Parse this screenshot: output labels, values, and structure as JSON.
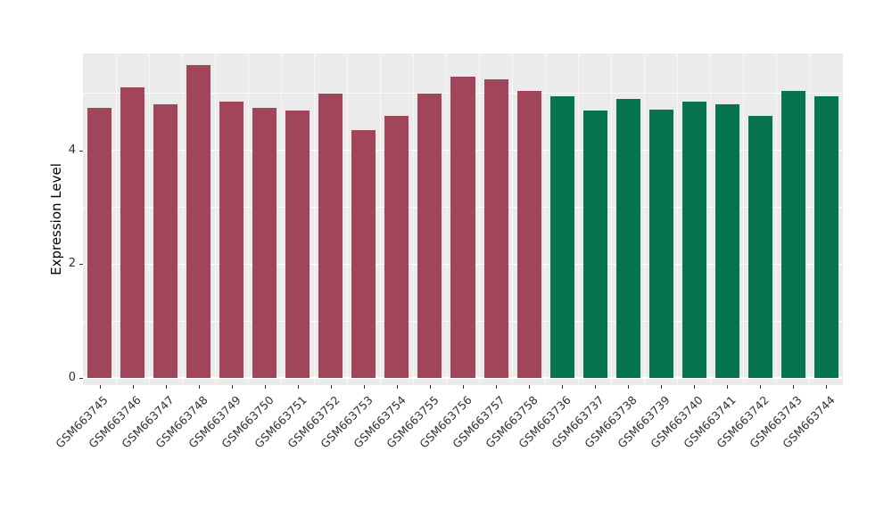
{
  "chart_data": {
    "type": "bar",
    "title": "",
    "xlabel": "",
    "ylabel": "Expression Level",
    "ylim": [
      0,
      5.7
    ],
    "yticks": [
      0,
      2,
      4
    ],
    "yticks_minor": [
      1,
      3,
      5
    ],
    "grid": true,
    "legend_position": "none",
    "plot_background": "#ebebeb",
    "grid_color": "#ffffff",
    "categories": [
      "GSM663745",
      "GSM663746",
      "GSM663747",
      "GSM663748",
      "GSM663749",
      "GSM663750",
      "GSM663751",
      "GSM663752",
      "GSM663753",
      "GSM663754",
      "GSM663755",
      "GSM663756",
      "GSM663757",
      "GSM663758",
      "GSM663736",
      "GSM663737",
      "GSM663738",
      "GSM663739",
      "GSM663740",
      "GSM663741",
      "GSM663742",
      "GSM663743",
      "GSM663744"
    ],
    "values": [
      4.75,
      5.1,
      4.8,
      5.5,
      4.85,
      4.75,
      4.7,
      5.0,
      4.35,
      4.6,
      5.0,
      5.3,
      5.25,
      5.05,
      4.95,
      4.7,
      4.9,
      4.72,
      4.85,
      4.8,
      4.6,
      5.05,
      4.95
    ],
    "bar_group": [
      0,
      0,
      0,
      0,
      0,
      0,
      0,
      0,
      0,
      0,
      0,
      0,
      0,
      0,
      1,
      1,
      1,
      1,
      1,
      1,
      1,
      1,
      1
    ],
    "group_colors": [
      "#a0455a",
      "#06754d"
    ],
    "groups": [
      {
        "name": "samples GSM663745-GSM663758",
        "color": "#a0455a"
      },
      {
        "name": "samples GSM663736-GSM663744",
        "color": "#06754d"
      }
    ]
  }
}
